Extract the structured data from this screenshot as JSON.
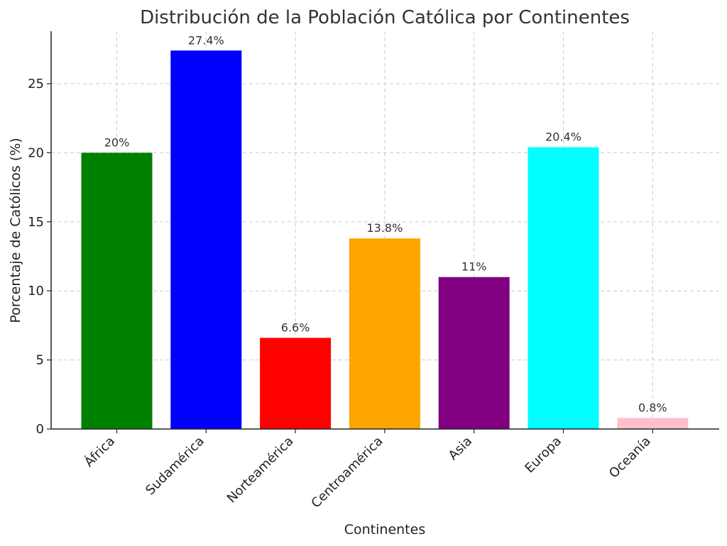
{
  "chart_data": {
    "type": "bar",
    "title": "Distribución de la Población Católica por Continentes",
    "xlabel": "Continentes",
    "ylabel": "Porcentaje de Católicos (%)",
    "categories": [
      "África",
      "Sudamérica",
      "Norteamérica",
      "Centroamérica",
      "Asia",
      "Europa",
      "Oceanía"
    ],
    "values": [
      20,
      27.4,
      6.6,
      13.8,
      11,
      20.4,
      0.8
    ],
    "value_labels": [
      "20%",
      "27.4%",
      "6.6%",
      "13.8%",
      "11%",
      "20.4%",
      "0.8%"
    ],
    "colors": [
      "#008000",
      "#0000ff",
      "#ff0000",
      "#ffa500",
      "#800080",
      "#00ffff",
      "#ffc0cb"
    ],
    "yticks": [
      0,
      5,
      10,
      15,
      20,
      25
    ],
    "ylim": [
      0,
      28.8
    ],
    "grid": true
  }
}
